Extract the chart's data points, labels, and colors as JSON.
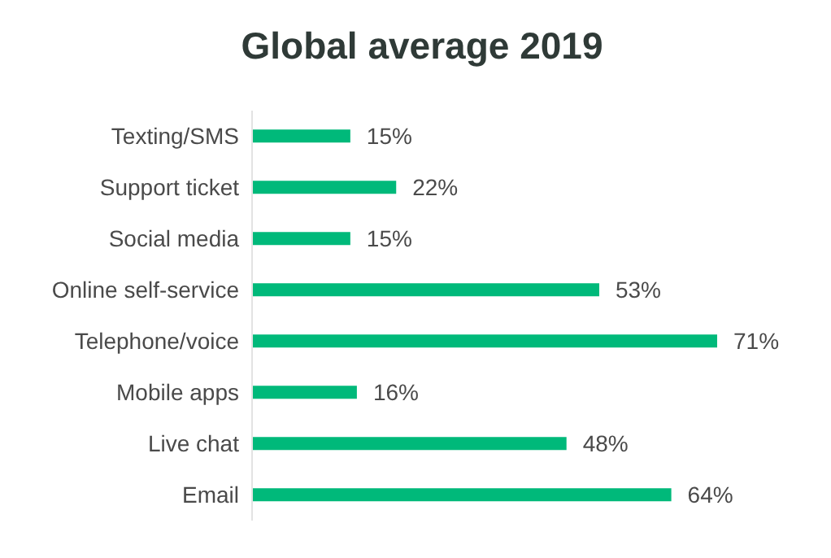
{
  "chart_data": {
    "type": "bar",
    "orientation": "horizontal",
    "title": "Global average 2019",
    "categories": [
      "Texting/SMS",
      "Support ticket",
      "Social media",
      "Online self-service",
      "Telephone/voice",
      "Mobile apps",
      "Live chat",
      "Email"
    ],
    "values": [
      15,
      22,
      15,
      53,
      71,
      16,
      48,
      64
    ],
    "value_labels": [
      "15%",
      "22%",
      "15%",
      "53%",
      "71%",
      "16%",
      "48%",
      "64%"
    ],
    "color": "#00b97a"
  }
}
